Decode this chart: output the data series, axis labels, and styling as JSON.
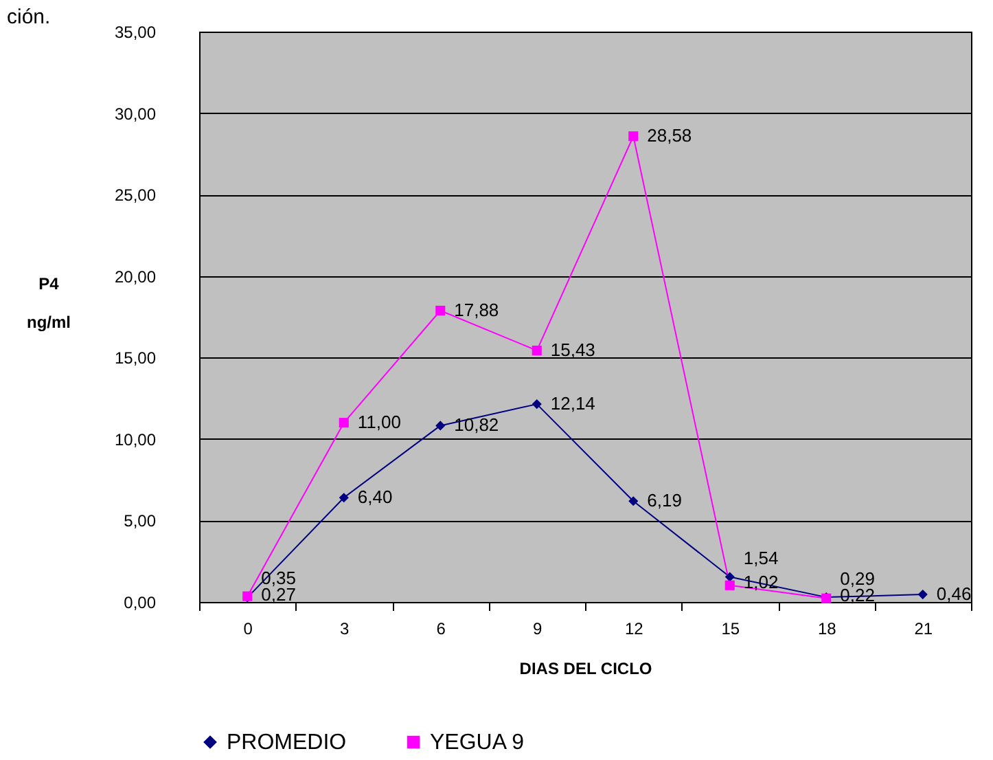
{
  "chart_data": {
    "type": "line",
    "xlabel": "DIAS DEL CICLO",
    "ylabel": "P4\nng/ml",
    "annotations": [
      "ción."
    ],
    "categories": [
      "0",
      "3",
      "6",
      "9",
      "12",
      "15",
      "18",
      "21"
    ],
    "series": [
      {
        "name": "PROMEDIO",
        "color": "#000080",
        "marker": "diamond",
        "values": [
          0.27,
          6.4,
          10.82,
          12.14,
          6.19,
          1.54,
          0.29,
          0.46
        ],
        "value_labels": [
          "0,27",
          "6,40",
          "10,82",
          "12,14",
          "6,19",
          "1,54",
          "0,29",
          "0,46"
        ]
      },
      {
        "name": "YEGUA 9",
        "color": "#ff00ff",
        "marker": "square",
        "values": [
          0.35,
          11.0,
          17.88,
          15.43,
          28.58,
          1.02,
          0.22,
          null
        ],
        "value_labels": [
          "0,35",
          "11,00",
          "17,88",
          "15,43",
          "28,58",
          "1,02",
          "0,22",
          null
        ]
      }
    ],
    "ylim": [
      0,
      35
    ],
    "yticks": [
      {
        "value": 0,
        "label": "0,00"
      },
      {
        "value": 5,
        "label": "5,00"
      },
      {
        "value": 10,
        "label": "10,00"
      },
      {
        "value": 15,
        "label": "15,00"
      },
      {
        "value": 20,
        "label": "20,00"
      },
      {
        "value": 25,
        "label": "25,00"
      },
      {
        "value": 30,
        "label": "30,00"
      },
      {
        "value": 35,
        "label": "35,00"
      }
    ],
    "grid": "y",
    "legend": "bottom",
    "line_style": "solid"
  }
}
